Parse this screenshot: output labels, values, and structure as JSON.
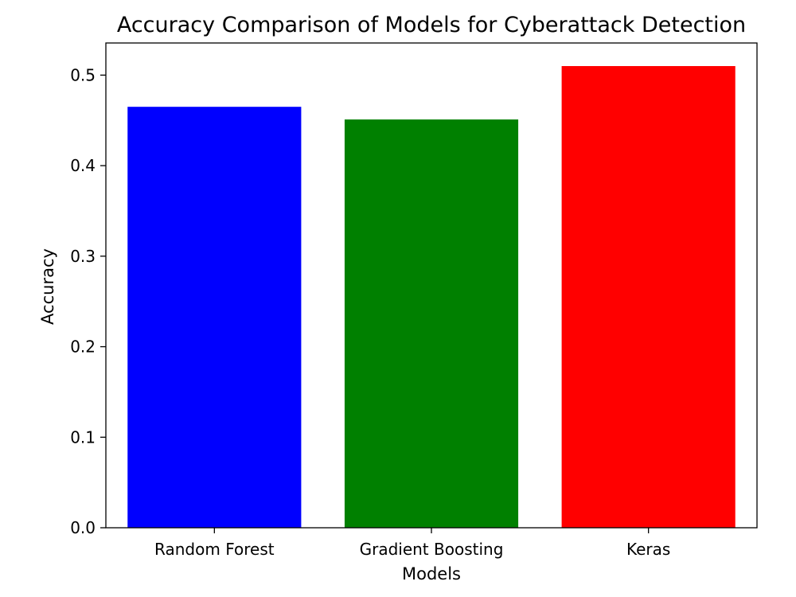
{
  "chart_data": {
    "type": "bar",
    "title": "Accuracy Comparison of Models for Cyberattack Detection",
    "xlabel": "Models",
    "ylabel": "Accuracy",
    "categories": [
      "Random Forest",
      "Gradient Boosting",
      "Keras"
    ],
    "values": [
      0.465,
      0.451,
      0.51
    ],
    "colors": [
      "#0000ff",
      "#008000",
      "#ff0000"
    ],
    "ylim": [
      0,
      0.5355
    ],
    "yticks": [
      0.0,
      0.1,
      0.2,
      0.3,
      0.4,
      0.5
    ],
    "ytick_labels": [
      "0.0",
      "0.1",
      "0.2",
      "0.3",
      "0.4",
      "0.5"
    ],
    "grid": false,
    "legend": "none"
  }
}
